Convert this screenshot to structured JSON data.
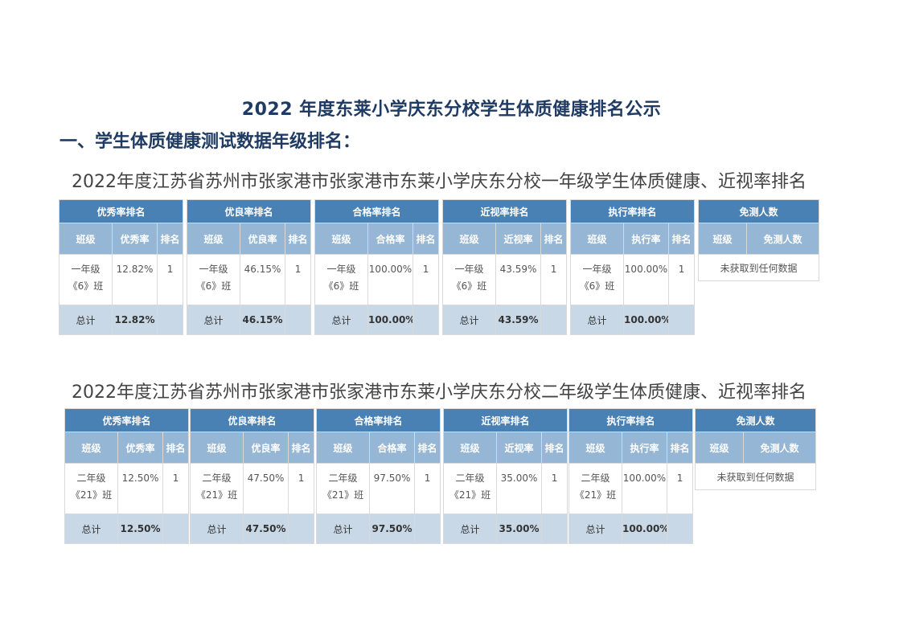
{
  "doc_title": "2022 年度东莱小学庆东分校学生体质健康排名公示",
  "section_heading": "一、学生体质健康测试数据年级排名：",
  "blocks": [
    {
      "title": "2022年度江苏省苏州市张家港市张家港市东莱小学庆东分校一年级学生体质健康、近视率排名",
      "tables": [
        {
          "title": "优秀率排名",
          "headers": [
            "班级",
            "优秀率",
            "排名"
          ],
          "class_line1": "一年级",
          "class_line2": "《6》班",
          "rate": "12.82%",
          "rank": "1",
          "total_label": "总计",
          "total_value": "12.82%"
        },
        {
          "title": "优良率排名",
          "headers": [
            "班级",
            "优良率",
            "排名"
          ],
          "class_line1": "一年级",
          "class_line2": "《6》班",
          "rate": "46.15%",
          "rank": "1",
          "total_label": "总计",
          "total_value": "46.15%"
        },
        {
          "title": "合格率排名",
          "headers": [
            "班级",
            "合格率",
            "排名"
          ],
          "class_line1": "一年级",
          "class_line2": "《6》班",
          "rate": "100.00%",
          "rank": "1",
          "total_label": "总计",
          "total_value": "100.00%"
        },
        {
          "title": "近视率排名",
          "headers": [
            "班级",
            "近视率",
            "排名"
          ],
          "class_line1": "一年级",
          "class_line2": "《6》班",
          "rate": "43.59%",
          "rank": "1",
          "total_label": "总计",
          "total_value": "43.59%"
        },
        {
          "title": "执行率排名",
          "headers": [
            "班级",
            "执行率",
            "排名"
          ],
          "class_line1": "一年级",
          "class_line2": "《6》班",
          "rate": "100.00%",
          "rank": "1",
          "total_label": "总计",
          "total_value": "100.00%"
        }
      ],
      "exempt": {
        "title": "免测人数",
        "headers": [
          "班级",
          "免测人数"
        ],
        "empty_text": "未获取到任何数据"
      }
    },
    {
      "title": "2022年度江苏省苏州市张家港市张家港市东莱小学庆东分校二年级学生体质健康、近视率排名",
      "tables": [
        {
          "title": "优秀率排名",
          "headers": [
            "班级",
            "优秀率",
            "排名"
          ],
          "class_line1": "二年级",
          "class_line2": "《21》班",
          "rate": "12.50%",
          "rank": "1",
          "total_label": "总计",
          "total_value": "12.50%"
        },
        {
          "title": "优良率排名",
          "headers": [
            "班级",
            "优良率",
            "排名"
          ],
          "class_line1": "二年级",
          "class_line2": "《21》班",
          "rate": "47.50%",
          "rank": "1",
          "total_label": "总计",
          "total_value": "47.50%"
        },
        {
          "title": "合格率排名",
          "headers": [
            "班级",
            "合格率",
            "排名"
          ],
          "class_line1": "二年级",
          "class_line2": "《21》班",
          "rate": "97.50%",
          "rank": "1",
          "total_label": "总计",
          "total_value": "97.50%"
        },
        {
          "title": "近视率排名",
          "headers": [
            "班级",
            "近视率",
            "排名"
          ],
          "class_line1": "二年级",
          "class_line2": "《21》班",
          "rate": "35.00%",
          "rank": "1",
          "total_label": "总计",
          "total_value": "35.00%"
        },
        {
          "title": "执行率排名",
          "headers": [
            "班级",
            "执行率",
            "排名"
          ],
          "class_line1": "二年级",
          "class_line2": "《21》班",
          "rate": "100.00%",
          "rank": "1",
          "total_label": "总计",
          "total_value": "100.00%"
        }
      ],
      "exempt": {
        "title": "免测人数",
        "headers": [
          "班级",
          "免测人数"
        ],
        "empty_text": "未获取到任何数据"
      }
    }
  ]
}
